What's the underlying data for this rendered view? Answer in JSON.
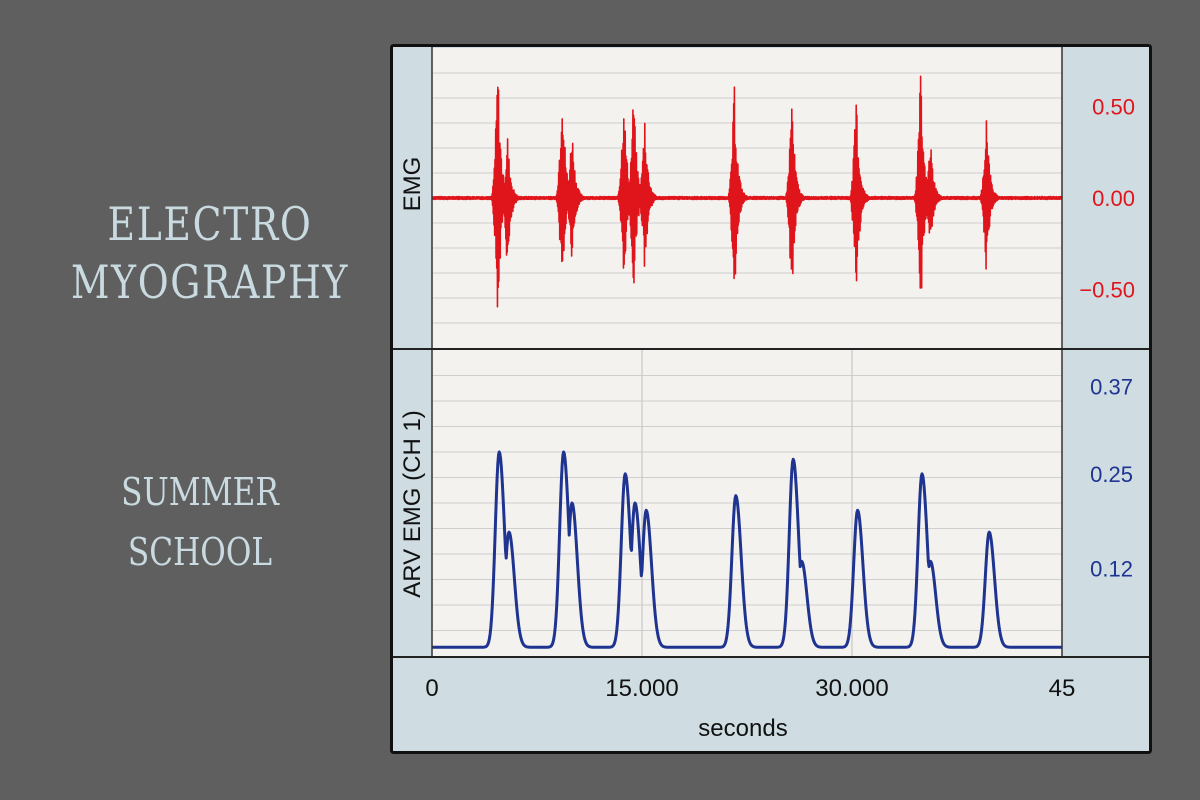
{
  "heading": {
    "lines": [
      "ELECTRO",
      "MYOGRAPHY"
    ],
    "subtitle_lines": [
      "SUMMER",
      "SCHOOL"
    ]
  },
  "colors": {
    "background": "#5f5f5f",
    "heading_text": "#c9dbe0",
    "panel_bg": "#cfdde3",
    "plot_bg": "#f4f2ee",
    "emg_trace": "#e0151c",
    "arv_trace": "#1e3490",
    "frame": "#111111"
  },
  "chart_data": [
    {
      "type": "line",
      "title": "",
      "ylabel": "EMG",
      "y_ticks": [
        "0.50",
        "0.00",
        "−0.50"
      ],
      "y_tick_values": [
        0.5,
        0.0,
        -0.5
      ],
      "ylim": [
        -0.82,
        0.82
      ],
      "xlim": [
        0,
        45
      ],
      "trace_color": "#e0151c",
      "series": [
        {
          "bursts_peak_amplitude": [
            {
              "t": 4.7,
              "pos": 0.78,
              "neg": -0.73
            },
            {
              "t": 5.4,
              "pos": 0.35,
              "neg": -0.45
            },
            {
              "t": 9.3,
              "pos": 0.72,
              "neg": -0.55
            },
            {
              "t": 10.0,
              "pos": 0.42,
              "neg": -0.4
            },
            {
              "t": 13.7,
              "pos": 0.62,
              "neg": -0.52
            },
            {
              "t": 14.4,
              "pos": 0.62,
              "neg": -0.55
            },
            {
              "t": 15.2,
              "pos": 0.48,
              "neg": -0.45
            },
            {
              "t": 21.6,
              "pos": 0.65,
              "neg": -0.6
            },
            {
              "t": 25.7,
              "pos": 0.6,
              "neg": -0.6
            },
            {
              "t": 30.3,
              "pos": 0.6,
              "neg": -0.65
            },
            {
              "t": 34.9,
              "pos": 0.72,
              "neg": -0.7
            },
            {
              "t": 35.6,
              "pos": 0.35,
              "neg": -0.3
            },
            {
              "t": 39.6,
              "pos": 0.5,
              "neg": -0.45
            }
          ],
          "baseline": 0.0
        }
      ]
    },
    {
      "type": "line",
      "title": "",
      "ylabel": "ARV EMG (CH 1)",
      "y_ticks": [
        "0.37",
        "0.25",
        "0.12"
      ],
      "y_tick_values": [
        0.37,
        0.25,
        0.12
      ],
      "ylim": [
        0.0,
        0.42
      ],
      "xlim": [
        0,
        45
      ],
      "x_ticks": [
        "0",
        "15.000",
        "30.000",
        "45"
      ],
      "x_tick_values": [
        0,
        15,
        30,
        45
      ],
      "xlabel": "seconds",
      "trace_color": "#1e3490",
      "series": [
        {
          "baseline": 0.012,
          "peaks": [
            {
              "t": 4.8,
              "v": 0.28
            },
            {
              "t": 5.5,
              "v": 0.17
            },
            {
              "t": 9.4,
              "v": 0.28
            },
            {
              "t": 10.0,
              "v": 0.21
            },
            {
              "t": 13.8,
              "v": 0.25
            },
            {
              "t": 14.5,
              "v": 0.21
            },
            {
              "t": 15.3,
              "v": 0.2
            },
            {
              "t": 21.7,
              "v": 0.22
            },
            {
              "t": 25.8,
              "v": 0.27
            },
            {
              "t": 26.4,
              "v": 0.13
            },
            {
              "t": 30.4,
              "v": 0.2
            },
            {
              "t": 35.0,
              "v": 0.25
            },
            {
              "t": 35.6,
              "v": 0.13
            },
            {
              "t": 39.8,
              "v": 0.17
            }
          ]
        }
      ]
    }
  ]
}
